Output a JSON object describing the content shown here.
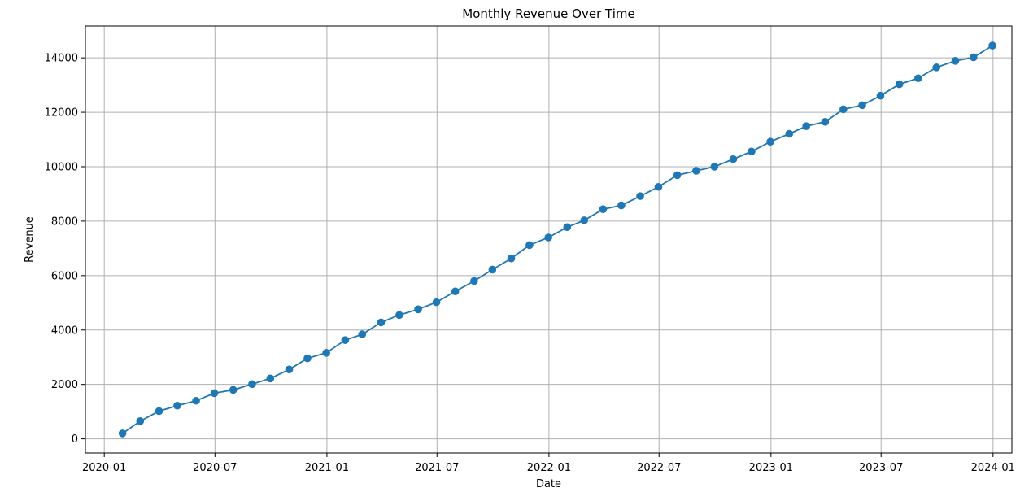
{
  "chart_data": {
    "type": "line",
    "title": "Monthly Revenue Over Time",
    "xlabel": "Date",
    "ylabel": "Revenue",
    "grid": true,
    "line_color": "#1f77b4",
    "marker": "circle",
    "x_tick_labels": [
      "2020-01",
      "2020-07",
      "2021-01",
      "2021-07",
      "2022-01",
      "2022-07",
      "2023-01",
      "2023-07",
      "2024-01"
    ],
    "y_tick_labels": [
      "0",
      "2000",
      "4000",
      "6000",
      "8000",
      "10000",
      "12000",
      "14000"
    ],
    "y_ticks": [
      0,
      2000,
      4000,
      6000,
      8000,
      10000,
      12000,
      14000
    ],
    "xlim": [
      "2019-12-01",
      "2024-02-01"
    ],
    "ylim": [
      -520,
      15170
    ],
    "series": [
      {
        "x": [
          "2020-01-31",
          "2020-02-29",
          "2020-03-31",
          "2020-04-30",
          "2020-05-31",
          "2020-06-30",
          "2020-07-31",
          "2020-08-31",
          "2020-09-30",
          "2020-10-31",
          "2020-11-30",
          "2020-12-31",
          "2021-01-31",
          "2021-02-28",
          "2021-03-31",
          "2021-04-30",
          "2021-05-31",
          "2021-06-30",
          "2021-07-31",
          "2021-08-31",
          "2021-09-30",
          "2021-10-31",
          "2021-11-30",
          "2021-12-31",
          "2022-01-31",
          "2022-02-28",
          "2022-03-31",
          "2022-04-30",
          "2022-05-31",
          "2022-06-30",
          "2022-07-31",
          "2022-08-31",
          "2022-09-30",
          "2022-10-31",
          "2022-11-30",
          "2022-12-31",
          "2023-01-31",
          "2023-02-28",
          "2023-03-31",
          "2023-04-30",
          "2023-05-31",
          "2023-06-30",
          "2023-07-31",
          "2023-08-31",
          "2023-09-30",
          "2023-10-31",
          "2023-11-30",
          "2023-12-31"
        ],
        "values": [
          200,
          650,
          1020,
          1220,
          1400,
          1680,
          1800,
          2010,
          2220,
          2550,
          2960,
          3160,
          3630,
          3840,
          4280,
          4550,
          4760,
          5020,
          5420,
          5800,
          6220,
          6630,
          7120,
          7400,
          7780,
          8030,
          8440,
          8580,
          8920,
          9260,
          9690,
          9850,
          10000,
          10280,
          10560,
          10920,
          11210,
          11490,
          11650,
          12110,
          12260,
          12610,
          13030,
          13250,
          13650,
          13890,
          14020,
          14450
        ]
      }
    ]
  }
}
